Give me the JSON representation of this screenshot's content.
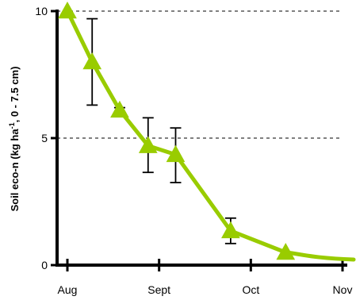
{
  "chart_data": {
    "type": "line",
    "ylabel": {
      "main": "Soil eco-n (kg ha",
      "sup": "-1",
      "rest": ", 0 - 7.5 cm)"
    },
    "x_ticks": [
      "Aug",
      "Sept",
      "Oct",
      "Nov"
    ],
    "y_ticks": [
      "0",
      "5",
      "10"
    ],
    "xlim": [
      0,
      3
    ],
    "ylim": [
      0,
      10
    ],
    "grid": "horizontal dashed at y = 5 and 10",
    "colors": {
      "series": "#99cc00",
      "marker": "#99cc00",
      "axis": "#000000",
      "error_bar": "#000000"
    },
    "series": [
      {
        "marker": "triangle",
        "points": [
          {
            "x": 0.0,
            "y": 10.0,
            "err_low": null,
            "err_high": null
          },
          {
            "x": 0.27,
            "y": 8.0,
            "err_low": 6.3,
            "err_high": 9.7
          },
          {
            "x": 0.57,
            "y": 6.1,
            "err_low": 5.9,
            "err_high": 6.2
          },
          {
            "x": 0.88,
            "y": 4.7,
            "err_low": 3.65,
            "err_high": 5.8
          },
          {
            "x": 1.18,
            "y": 4.35,
            "err_low": 3.25,
            "err_high": 5.4
          },
          {
            "x": 1.78,
            "y": 1.35,
            "err_low": 0.85,
            "err_high": 1.85
          },
          {
            "x": 2.38,
            "y": 0.5,
            "err_low": null,
            "err_high": null
          }
        ],
        "curve_tail": {
          "x": 3.0,
          "y": 0.28
        }
      }
    ]
  }
}
